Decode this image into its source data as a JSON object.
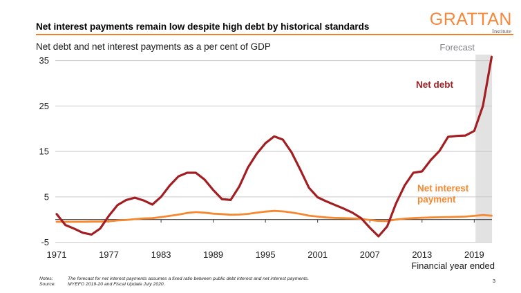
{
  "header": {
    "title": "Net interest payments remain low despite high debt by historical standards",
    "subtitle": "Net debt and net interest payments as a per cent of GDP",
    "logo_name": "GRATTAN",
    "logo_sub": "Institute"
  },
  "annotations": {
    "forecast": "Forecast",
    "net_debt": "Net debt",
    "net_interest": "Net interest payment",
    "x_axis_caption": "Financial year ended"
  },
  "colors": {
    "net_debt": "#a21e22",
    "net_interest": "#f6882f",
    "brand_orange": "#ee7e2b",
    "gridline": "#c9c9c9",
    "zero_axis": "#3c3c3c",
    "forecast_band": "#e2e2e2",
    "forecast_text": "#808285"
  },
  "chart_data": {
    "type": "line",
    "title": "Net interest payments remain low despite high debt by historical standards",
    "subtitle": "Net debt and net interest payments as a per cent of GDP",
    "xlabel": "Financial year ended",
    "ylabel": "",
    "ylim": [
      -6.5,
      37
    ],
    "grid": "horizontal",
    "legend_position": "inline-annotations",
    "yticks": [
      35,
      25,
      15,
      5,
      -5
    ],
    "xticks": [
      1971,
      1977,
      1983,
      1989,
      1995,
      2001,
      2007,
      2013,
      2019
    ],
    "forecast_band": {
      "label": "Forecast",
      "start_year": 2019.15,
      "end_year": 2021.05
    },
    "x": [
      1971,
      1972,
      1973,
      1974,
      1975,
      1976,
      1977,
      1978,
      1979,
      1980,
      1981,
      1982,
      1983,
      1984,
      1985,
      1986,
      1987,
      1988,
      1989,
      1990,
      1991,
      1992,
      1993,
      1994,
      1995,
      1996,
      1997,
      1998,
      1999,
      2000,
      2001,
      2002,
      2003,
      2004,
      2005,
      2006,
      2007,
      2008,
      2009,
      2010,
      2011,
      2012,
      2013,
      2014,
      2015,
      2016,
      2017,
      2018,
      2019,
      2020,
      2021
    ],
    "series": [
      {
        "name": "Net debt",
        "color": "#a21e22",
        "values": [
          1.2,
          -1.2,
          -2.0,
          -2.9,
          -3.3,
          -2.0,
          0.8,
          3.2,
          4.3,
          4.8,
          4.2,
          3.3,
          5.0,
          7.5,
          9.5,
          10.3,
          10.3,
          8.8,
          6.5,
          4.5,
          4.3,
          7.3,
          11.5,
          14.5,
          16.8,
          18.3,
          17.6,
          14.8,
          11.0,
          7.0,
          4.9,
          4.0,
          3.2,
          2.4,
          1.5,
          0.3,
          -1.8,
          -3.7,
          -1.5,
          3.5,
          7.5,
          10.3,
          10.6,
          13.1,
          15.1,
          18.2,
          18.4,
          18.5,
          19.5,
          25.0,
          35.8
        ]
      },
      {
        "name": "Net interest payment",
        "color": "#f6882f",
        "values": [
          -0.5,
          -0.5,
          -0.5,
          -0.5,
          -0.45,
          -0.45,
          -0.4,
          -0.2,
          -0.1,
          0.1,
          0.25,
          0.3,
          0.55,
          0.8,
          1.1,
          1.45,
          1.65,
          1.5,
          1.3,
          1.2,
          1.05,
          1.1,
          1.25,
          1.5,
          1.75,
          1.9,
          1.8,
          1.55,
          1.25,
          0.85,
          0.65,
          0.45,
          0.35,
          0.3,
          0.25,
          0.15,
          -0.1,
          -0.3,
          -0.35,
          0.0,
          0.2,
          0.3,
          0.4,
          0.45,
          0.5,
          0.55,
          0.6,
          0.65,
          0.8,
          1.0,
          0.85
        ]
      }
    ]
  },
  "footer": {
    "notes_label": "Notes:",
    "notes": "The forecast for net interest payments assumes a fixed ratio between public debt interest and net interest payments.",
    "source_label": "Source:",
    "source": "MYEFO 2019-20 and Fiscal Update July 2020.",
    "page": "3"
  }
}
